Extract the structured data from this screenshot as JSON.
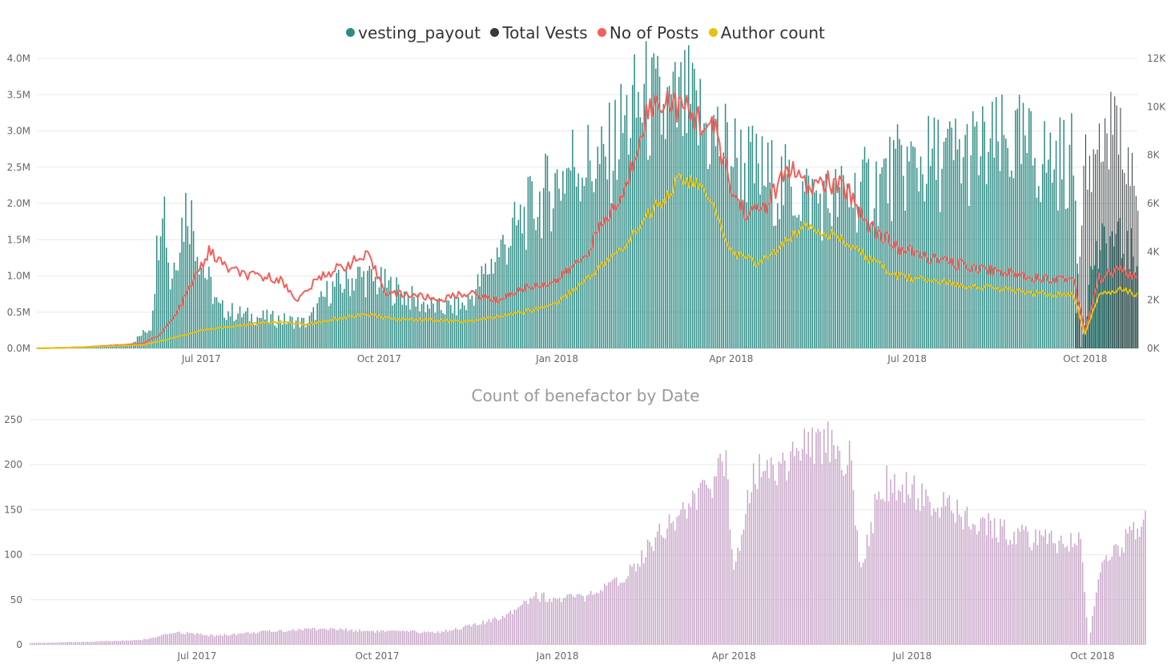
{
  "colors": {
    "vesting_payout": "#2e8b84",
    "total_vests": "#333a3c",
    "no_of_posts": "#f2605a",
    "author_count": "#e7c10e",
    "benefactor": "#c8a7c9",
    "grid": "#e8e8e8",
    "text": "#666666"
  },
  "chart_data": [
    {
      "type": "bar",
      "title": "",
      "legend": {
        "placement": "top-center",
        "items": [
          {
            "name": "vesting_payout",
            "marker": "circle"
          },
          {
            "name": "Total Vests",
            "marker": "circle"
          },
          {
            "name": "No of Posts",
            "marker": "circle"
          },
          {
            "name": "Author count",
            "marker": "circle"
          }
        ]
      },
      "x_range": [
        "2017-04-07",
        "2018-10-28"
      ],
      "x_ticks": [
        "Jul 2017",
        "Oct 2017",
        "Jan 2018",
        "Apr 2018",
        "Jul 2018",
        "Oct 2018"
      ],
      "y_left": {
        "range": [
          0,
          4000000
        ],
        "ticks": [
          "0.0M",
          "0.5M",
          "1.0M",
          "1.5M",
          "2.0M",
          "2.5M",
          "3.0M",
          "3.5M",
          "4.0M"
        ]
      },
      "y_right": {
        "range": [
          0,
          12000
        ],
        "ticks": [
          "0K",
          "2K",
          "4K",
          "6K",
          "8K",
          "10K",
          "12K"
        ]
      },
      "grid": true,
      "series": [
        {
          "name": "vesting_payout",
          "type": "bar",
          "axis": "left",
          "points": [
            [
              "2017-04-07",
              0.01
            ],
            [
              "2017-04-20",
              0.01
            ],
            [
              "2017-05-10",
              0.02
            ],
            [
              "2017-05-25",
              0.05
            ],
            [
              "2017-06-05",
              0.3
            ],
            [
              "2017-06-11",
              2.35
            ],
            [
              "2017-06-15",
              0.9
            ],
            [
              "2017-06-20",
              1.6
            ],
            [
              "2017-06-24",
              2.05
            ],
            [
              "2017-07-01",
              1.2
            ],
            [
              "2017-07-10",
              0.55
            ],
            [
              "2017-07-25",
              0.45
            ],
            [
              "2017-08-10",
              0.4
            ],
            [
              "2017-08-25",
              0.35
            ],
            [
              "2017-09-05",
              0.8
            ],
            [
              "2017-09-20",
              1.0
            ],
            [
              "2017-10-01",
              0.9
            ],
            [
              "2017-10-10",
              0.8
            ],
            [
              "2017-10-20",
              0.65
            ],
            [
              "2017-11-01",
              0.55
            ],
            [
              "2017-11-15",
              0.6
            ],
            [
              "2017-12-01",
              1.3
            ],
            [
              "2017-12-15",
              1.8
            ],
            [
              "2018-01-01",
              2.3
            ],
            [
              "2018-01-10",
              2.6
            ],
            [
              "2018-01-25",
              2.5
            ],
            [
              "2018-02-05",
              3.1
            ],
            [
              "2018-02-15",
              3.4
            ],
            [
              "2018-02-25",
              3.2
            ],
            [
              "2018-03-10",
              3.3
            ],
            [
              "2018-03-20",
              3.0
            ],
            [
              "2018-04-01",
              2.7
            ],
            [
              "2018-04-15",
              2.4
            ],
            [
              "2018-05-01",
              2.2
            ],
            [
              "2018-05-20",
              2.0
            ],
            [
              "2018-06-10",
              2.2
            ],
            [
              "2018-07-01",
              2.5
            ],
            [
              "2018-07-20",
              2.6
            ],
            [
              "2018-08-10",
              2.7
            ],
            [
              "2018-08-25",
              2.8
            ],
            [
              "2018-09-10",
              2.6
            ],
            [
              "2018-09-25",
              2.55
            ],
            [
              "2018-09-29",
              0.02
            ],
            [
              "2018-10-05",
              1.2
            ],
            [
              "2018-10-15",
              1.5
            ],
            [
              "2018-10-25",
              1.3
            ]
          ]
        },
        {
          "name": "Total Vests",
          "type": "bar",
          "axis": "left",
          "points": [
            [
              "2017-06-11",
              0.1
            ],
            [
              "2017-07-10",
              0.05
            ],
            [
              "2017-09-01",
              0.05
            ],
            [
              "2017-12-01",
              0.05
            ],
            [
              "2018-03-01",
              0.1
            ],
            [
              "2018-06-01",
              0.1
            ],
            [
              "2018-09-25",
              0.05
            ],
            [
              "2018-10-01",
              2.6
            ],
            [
              "2018-10-08",
              2.8
            ],
            [
              "2018-10-15",
              3.0
            ],
            [
              "2018-10-22",
              2.8
            ],
            [
              "2018-10-28",
              1.8
            ]
          ]
        },
        {
          "name": "No of Posts",
          "type": "line",
          "axis": "right",
          "points": [
            [
              "2017-04-07",
              0.0
            ],
            [
              "2017-05-01",
              50
            ],
            [
              "2017-06-01",
              200
            ],
            [
              "2017-06-10",
              600
            ],
            [
              "2017-06-18",
              1400
            ],
            [
              "2017-06-25",
              2500
            ],
            [
              "2017-07-05",
              4000
            ],
            [
              "2017-07-15",
              3300
            ],
            [
              "2017-07-25",
              3000
            ],
            [
              "2017-08-10",
              2900
            ],
            [
              "2017-08-20",
              2000
            ],
            [
              "2017-09-01",
              3000
            ],
            [
              "2017-09-15",
              3500
            ],
            [
              "2017-09-25",
              3800
            ],
            [
              "2017-10-05",
              2300
            ],
            [
              "2017-10-20",
              2200
            ],
            [
              "2017-11-01",
              2000
            ],
            [
              "2017-11-15",
              2300
            ],
            [
              "2017-12-01",
              2000
            ],
            [
              "2017-12-15",
              2500
            ],
            [
              "2018-01-01",
              2800
            ],
            [
              "2018-01-15",
              3800
            ],
            [
              "2018-01-25",
              5200
            ],
            [
              "2018-02-05",
              6400
            ],
            [
              "2018-02-15",
              9600
            ],
            [
              "2018-02-25",
              10400
            ],
            [
              "2018-03-05",
              10000
            ],
            [
              "2018-03-15",
              9500
            ],
            [
              "2018-03-25",
              8800
            ],
            [
              "2018-04-01",
              6500
            ],
            [
              "2018-04-10",
              5500
            ],
            [
              "2018-04-20",
              6000
            ],
            [
              "2018-05-01",
              7500
            ],
            [
              "2018-05-10",
              6600
            ],
            [
              "2018-05-20",
              6900
            ],
            [
              "2018-06-01",
              6500
            ],
            [
              "2018-06-10",
              5200
            ],
            [
              "2018-06-25",
              4200
            ],
            [
              "2018-07-10",
              3800
            ],
            [
              "2018-07-25",
              3500
            ],
            [
              "2018-08-10",
              3300
            ],
            [
              "2018-08-25",
              3100
            ],
            [
              "2018-09-10",
              2900
            ],
            [
              "2018-09-25",
              2900
            ],
            [
              "2018-10-01",
              700
            ],
            [
              "2018-10-08",
              2900
            ],
            [
              "2018-10-20",
              3300
            ],
            [
              "2018-10-28",
              2800
            ]
          ]
        },
        {
          "name": "Author count",
          "type": "line",
          "axis": "right",
          "points": [
            [
              "2017-04-07",
              0.0
            ],
            [
              "2017-05-01",
              50
            ],
            [
              "2017-06-01",
              150
            ],
            [
              "2017-06-15",
              400
            ],
            [
              "2017-07-01",
              750
            ],
            [
              "2017-07-20",
              950
            ],
            [
              "2017-08-10",
              1100
            ],
            [
              "2017-08-25",
              1000
            ],
            [
              "2017-09-10",
              1250
            ],
            [
              "2017-09-25",
              1400
            ],
            [
              "2017-10-10",
              1200
            ],
            [
              "2017-10-25",
              1200
            ],
            [
              "2017-11-15",
              1100
            ],
            [
              "2017-12-01",
              1300
            ],
            [
              "2017-12-20",
              1600
            ],
            [
              "2018-01-01",
              1900
            ],
            [
              "2018-01-15",
              2800
            ],
            [
              "2018-01-25",
              3500
            ],
            [
              "2018-02-05",
              4200
            ],
            [
              "2018-02-15",
              5400
            ],
            [
              "2018-02-25",
              6200
            ],
            [
              "2018-03-05",
              7000
            ],
            [
              "2018-03-15",
              6800
            ],
            [
              "2018-03-25",
              5500
            ],
            [
              "2018-04-01",
              4000
            ],
            [
              "2018-04-15",
              3500
            ],
            [
              "2018-05-01",
              4500
            ],
            [
              "2018-05-10",
              5200
            ],
            [
              "2018-05-20",
              4800
            ],
            [
              "2018-06-01",
              4300
            ],
            [
              "2018-06-15",
              3500
            ],
            [
              "2018-06-25",
              3000
            ],
            [
              "2018-07-15",
              2800
            ],
            [
              "2018-08-01",
              2600
            ],
            [
              "2018-08-15",
              2500
            ],
            [
              "2018-09-01",
              2300
            ],
            [
              "2018-09-25",
              2200
            ],
            [
              "2018-10-01",
              600
            ],
            [
              "2018-10-08",
              2200
            ],
            [
              "2018-10-20",
              2500
            ],
            [
              "2018-10-28",
              2200
            ]
          ]
        }
      ]
    },
    {
      "type": "bar",
      "title": "Count of benefactor by Date",
      "x_range": [
        "2017-04-07",
        "2018-10-28"
      ],
      "x_ticks": [
        "Jul 2017",
        "Oct 2017",
        "Jan 2018",
        "Apr 2018",
        "Jul 2018",
        "Oct 2018"
      ],
      "y_range": [
        0,
        250
      ],
      "y_ticks": [
        "0",
        "50",
        "100",
        "150",
        "200",
        "250"
      ],
      "grid": true,
      "series": [
        {
          "name": "benefactor",
          "type": "bar",
          "points": [
            [
              "2017-04-07",
              2
            ],
            [
              "2017-05-01",
              3
            ],
            [
              "2017-06-01",
              5
            ],
            [
              "2017-06-10",
              8
            ],
            [
              "2017-06-20",
              14
            ],
            [
              "2017-07-10",
              10
            ],
            [
              "2017-08-01",
              14
            ],
            [
              "2017-09-01",
              18
            ],
            [
              "2017-10-01",
              15
            ],
            [
              "2017-11-01",
              14
            ],
            [
              "2017-11-20",
              22
            ],
            [
              "2017-12-01",
              28
            ],
            [
              "2017-12-10",
              40
            ],
            [
              "2017-12-20",
              55
            ],
            [
              "2018-01-01",
              50
            ],
            [
              "2018-01-20",
              55
            ],
            [
              "2018-02-01",
              70
            ],
            [
              "2018-02-10",
              90
            ],
            [
              "2018-02-20",
              120
            ],
            [
              "2018-03-01",
              140
            ],
            [
              "2018-03-10",
              155
            ],
            [
              "2018-03-20",
              175
            ],
            [
              "2018-03-28",
              205
            ],
            [
              "2018-04-01",
              80
            ],
            [
              "2018-04-10",
              190
            ],
            [
              "2018-04-25",
              200
            ],
            [
              "2018-05-05",
              215
            ],
            [
              "2018-05-20",
              230
            ],
            [
              "2018-05-30",
              205
            ],
            [
              "2018-06-05",
              80
            ],
            [
              "2018-06-15",
              180
            ],
            [
              "2018-06-30",
              170
            ],
            [
              "2018-07-15",
              155
            ],
            [
              "2018-08-01",
              135
            ],
            [
              "2018-08-20",
              125
            ],
            [
              "2018-09-05",
              115
            ],
            [
              "2018-09-25",
              115
            ],
            [
              "2018-09-29",
              0
            ],
            [
              "2018-10-05",
              90
            ],
            [
              "2018-10-15",
              110
            ],
            [
              "2018-10-28",
              135
            ]
          ]
        }
      ]
    }
  ]
}
